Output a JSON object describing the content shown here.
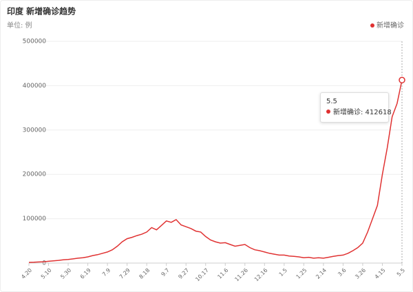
{
  "chart_data": {
    "type": "line",
    "title": "印度 新增确诊趋势",
    "subtitle": "单位: 例",
    "categories": [
      "4.20",
      null,
      null,
      null,
      "5.10",
      null,
      null,
      null,
      "5.30",
      null,
      null,
      null,
      "6.19",
      null,
      null,
      null,
      "7.9",
      null,
      null,
      null,
      "7.29",
      null,
      null,
      null,
      "8.18",
      null,
      null,
      null,
      "9.7",
      null,
      null,
      null,
      "9.27",
      null,
      null,
      null,
      "10.17",
      null,
      null,
      null,
      "11.6",
      null,
      null,
      null,
      "11.26",
      null,
      null,
      null,
      "12.16",
      null,
      null,
      null,
      "1.5",
      null,
      null,
      null,
      "1.25",
      null,
      null,
      null,
      "2.14",
      null,
      null,
      null,
      "3.6",
      null,
      null,
      null,
      "3.26",
      null,
      null,
      null,
      "4.15",
      null,
      null,
      null,
      "5.5"
    ],
    "series": [
      {
        "name": "新增确诊",
        "color": "#e03131",
        "values": [
          1500,
          1800,
          2500,
          3000,
          4000,
          5000,
          6000,
          7500,
          8000,
          9500,
          11000,
          12000,
          14000,
          17000,
          19000,
          22000,
          25000,
          30000,
          38000,
          48000,
          55000,
          58000,
          62000,
          65000,
          70000,
          80000,
          75000,
          85000,
          95000,
          92000,
          98000,
          86000,
          82000,
          78000,
          72000,
          70000,
          60000,
          52000,
          48000,
          45000,
          46000,
          42000,
          38000,
          40000,
          42000,
          35000,
          30000,
          28000,
          25000,
          22000,
          20000,
          18000,
          18000,
          16000,
          15000,
          14000,
          12000,
          13000,
          11000,
          12000,
          11000,
          13000,
          15000,
          17000,
          18000,
          22000,
          28000,
          35000,
          45000,
          70000,
          100000,
          130000,
          200000,
          260000,
          330000,
          360000,
          412618
        ]
      }
    ],
    "ylim": [
      0,
      500000
    ],
    "yticks": [
      0,
      100000,
      200000,
      300000,
      400000,
      500000
    ],
    "grid": true,
    "tooltip_label": "新增确诊: 412618"
  }
}
